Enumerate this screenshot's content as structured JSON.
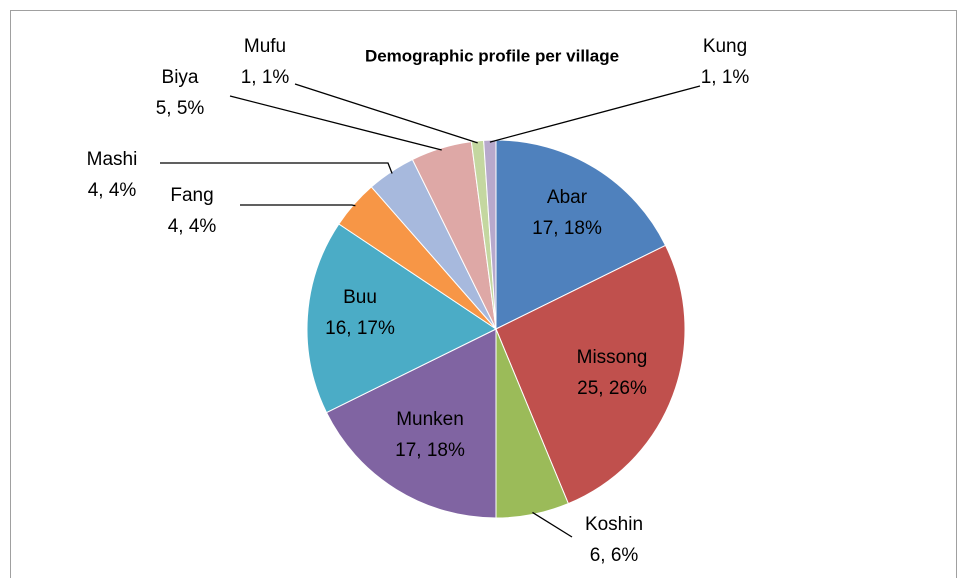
{
  "chart_data": {
    "type": "pie",
    "title": "Demographic profile per village",
    "categories": [
      "Abar",
      "Missong",
      "Koshin",
      "Munken",
      "Buu",
      "Fang",
      "Mashi",
      "Biya",
      "Mufu",
      "Kung"
    ],
    "values": [
      17,
      25,
      6,
      17,
      16,
      4,
      4,
      5,
      1,
      1
    ],
    "value_labels": [
      "17, 18%",
      "25, 26%",
      "6, 6%",
      "17, 18%",
      "16, 17%",
      "4, 4%",
      "4, 4%",
      "5, 5%",
      "1, 1%",
      "1, 1%"
    ],
    "colors": [
      "#4f81bd",
      "#c0504d",
      "#9bbb59",
      "#8064a2",
      "#4bacc6",
      "#f79646",
      "#a7b9dd",
      "#dea8a6",
      "#c4d7a0",
      "#b7a9cc"
    ]
  }
}
